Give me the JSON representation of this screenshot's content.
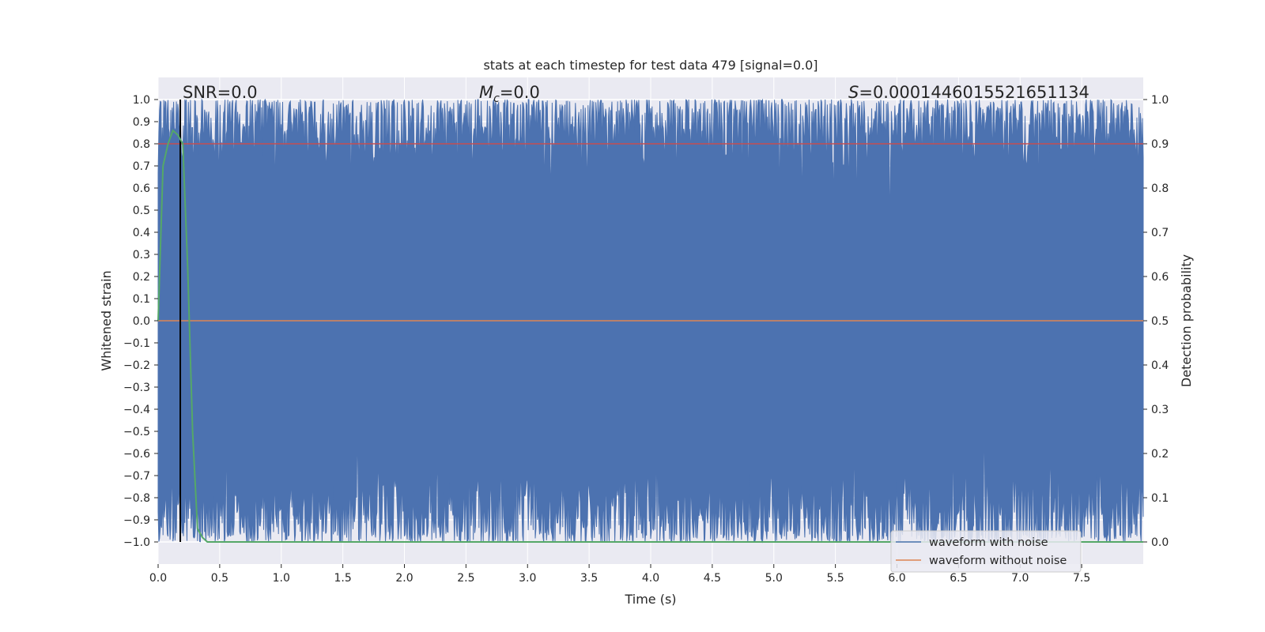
{
  "chart_data": {
    "type": "line",
    "title": "stats at each timestep for test data 479 [signal=0.0]",
    "xlabel": "Time (s)",
    "ylabel_left": "Whitened strain",
    "ylabel_right": "Detection probability",
    "xlim": [
      0.0,
      8.0
    ],
    "ylim_left": [
      -1.1,
      1.1
    ],
    "ylim_right": [
      -0.05,
      1.05
    ],
    "xticks": [
      "0.0",
      "0.5",
      "1.0",
      "1.5",
      "2.0",
      "2.5",
      "3.0",
      "3.5",
      "4.0",
      "4.5",
      "5.0",
      "5.5",
      "6.0",
      "6.5",
      "7.0",
      "7.5"
    ],
    "yticks_left": [
      "1.0",
      "0.9",
      "0.8",
      "0.7",
      "0.6",
      "0.5",
      "0.4",
      "0.3",
      "0.2",
      "0.1",
      "0.0",
      "−0.1",
      "−0.2",
      "−0.3",
      "−0.4",
      "−0.5",
      "−0.6",
      "−0.7",
      "−0.8",
      "−0.9",
      "−1.0"
    ],
    "yticks_right": [
      "1.0",
      "0.9",
      "0.8",
      "0.7",
      "0.6",
      "0.5",
      "0.4",
      "0.3",
      "0.2",
      "0.1",
      "0.0"
    ],
    "annotations": {
      "snr": "SNR=0.0",
      "mc_symbol": "M",
      "mc_sub": "c",
      "mc_value": "=0.0",
      "s_symbol": "S",
      "s_value": "=0.0001446015521651134"
    },
    "series": [
      {
        "name": "waveform with noise",
        "color": "#4c72b0",
        "axis": "left",
        "description": "dense whitened noise, normalized to [-1, 1]"
      },
      {
        "name": "waveform without noise",
        "color": "#dd8452",
        "axis": "left",
        "values_constant": 0.0
      },
      {
        "name": "detection probability",
        "color": "#55a868",
        "axis": "right",
        "x": [
          0.0,
          0.04,
          0.08,
          0.12,
          0.16,
          0.2,
          0.24,
          0.28,
          0.32,
          0.36,
          0.4,
          8.0
        ],
        "values": [
          0.5,
          0.85,
          0.9,
          0.93,
          0.92,
          0.9,
          0.62,
          0.25,
          0.03,
          0.01,
          0.0,
          0.0
        ]
      }
    ],
    "threshold": {
      "value": 0.9,
      "axis": "right",
      "color": "#c44e52"
    },
    "event_marker": {
      "x": 0.18,
      "color": "#000000"
    },
    "legend": {
      "placement": "lower-right",
      "entries": [
        "waveform with noise",
        "waveform without noise"
      ]
    },
    "colors": {
      "plot_bg": "#eaeaf2",
      "grid": "#ffffff"
    }
  }
}
